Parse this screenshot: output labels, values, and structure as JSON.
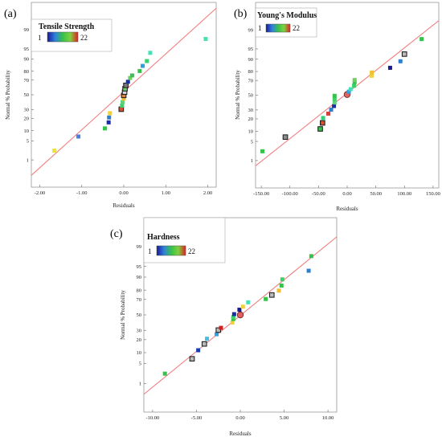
{
  "chart_data": [
    {
      "type": "scatter",
      "panel": "(a)",
      "legend": {
        "title": "Tensile Strength",
        "min": "1",
        "max": "22"
      },
      "xlabel": "Residuals",
      "ylabel": "Normal % Probability",
      "xlim": [
        -2.2,
        2.2
      ],
      "x_ticks": [
        -2.0,
        -1.0,
        0.0,
        1.0,
        2.0
      ],
      "x_tick_labels": [
        "-2.00",
        "-1.00",
        "0.00",
        "1.00",
        "2.00"
      ],
      "y_ticks": [
        1,
        5,
        10,
        20,
        30,
        50,
        70,
        80,
        90,
        95,
        99
      ],
      "y_tick_labels": [
        "1",
        "5",
        "10",
        "20",
        "30",
        "50",
        "70",
        "80",
        "90",
        "95",
        "99"
      ],
      "y_scale": "normal-probability",
      "grid": false,
      "reference_line": {
        "x": [
          -2.2,
          2.2
        ],
        "y": [
          0.2,
          99.9
        ],
        "color": "#f08080"
      },
      "points": [
        {
          "x": -1.65,
          "y": 2.3,
          "color": "#e6e62e",
          "outlined": false
        },
        {
          "x": -1.08,
          "y": 6.8,
          "color": "#4a7fe0",
          "outlined": false
        },
        {
          "x": -0.45,
          "y": 11.5,
          "color": "#36c24a",
          "outlined": false
        },
        {
          "x": -0.36,
          "y": 16.2,
          "color": "#1a2ea8",
          "outlined": false
        },
        {
          "x": -0.35,
          "y": 20.9,
          "color": "#2f7fcf",
          "outlined": false
        },
        {
          "x": -0.33,
          "y": 25.6,
          "color": "#f0d040",
          "outlined": false
        },
        {
          "x": -0.06,
          "y": 30.3,
          "color": "#d95030",
          "outlined": true
        },
        {
          "x": -0.04,
          "y": 35.0,
          "color": "#3fcf6a",
          "outlined": false
        },
        {
          "x": -0.03,
          "y": 39.7,
          "color": "#60d080",
          "outlined": false
        },
        {
          "x": 0.0,
          "y": 44.4,
          "color": "#f0c030",
          "outlined": false
        },
        {
          "x": 0.0,
          "y": 49.1,
          "color": "#e08040",
          "outlined": true
        },
        {
          "x": 0.02,
          "y": 53.8,
          "color": "#d7d7d7",
          "outlined": true
        },
        {
          "x": 0.03,
          "y": 58.5,
          "color": "#6fd06a",
          "outlined": true
        },
        {
          "x": 0.05,
          "y": 63.2,
          "color": "#7a7a7a",
          "outlined": true
        },
        {
          "x": 0.1,
          "y": 67.9,
          "color": "#1a2ea8",
          "outlined": false
        },
        {
          "x": 0.15,
          "y": 72.6,
          "color": "#6fd060",
          "outlined": false
        },
        {
          "x": 0.2,
          "y": 75.5,
          "color": "#4ab85a",
          "outlined": false
        },
        {
          "x": 0.38,
          "y": 80.2,
          "color": "#36c24a",
          "outlined": false
        },
        {
          "x": 0.45,
          "y": 84.9,
          "color": "#2f9fe0",
          "outlined": false
        },
        {
          "x": 0.55,
          "y": 88.6,
          "color": "#3fd070",
          "outlined": false
        },
        {
          "x": 0.63,
          "y": 93.3,
          "color": "#45e0b5",
          "outlined": false
        },
        {
          "x": 1.95,
          "y": 97.7,
          "color": "#45e0b5",
          "outlined": false
        }
      ]
    },
    {
      "type": "scatter",
      "panel": "(b)",
      "legend": {
        "title": "Young's Modulus",
        "min": "1",
        "max": "22"
      },
      "xlabel": "Residuals",
      "ylabel": "Normal % Probability",
      "xlim": [
        -160,
        160
      ],
      "x_ticks": [
        -150,
        -100,
        -50,
        0,
        50,
        100,
        150
      ],
      "x_tick_labels": [
        "-150.00",
        "-100.00",
        "-50.00",
        "0.00",
        "50.00",
        "100.00",
        "150.00"
      ],
      "y_ticks": [
        1,
        5,
        10,
        20,
        30,
        50,
        70,
        80,
        90,
        95,
        99
      ],
      "y_tick_labels": [
        "1",
        "5",
        "10",
        "20",
        "30",
        "50",
        "70",
        "80",
        "90",
        "95",
        "99"
      ],
      "y_scale": "normal-probability",
      "grid": false,
      "reference_line": {
        "x": [
          -160,
          160
        ],
        "y": [
          0.6,
          99.6
        ],
        "color": "#f08080"
      },
      "points": [
        {
          "x": -148,
          "y": 2.3,
          "color": "#36c24a",
          "outlined": false
        },
        {
          "x": -108,
          "y": 6.8,
          "color": "#8f8f8f",
          "outlined": true
        },
        {
          "x": -47,
          "y": 11.5,
          "color": "#36c24a",
          "outlined": true
        },
        {
          "x": -43,
          "y": 16.2,
          "color": "#d95030",
          "outlined": true
        },
        {
          "x": -42,
          "y": 20.9,
          "color": "#2fcf7a",
          "outlined": false
        },
        {
          "x": -33,
          "y": 25.6,
          "color": "#d04040",
          "outlined": false
        },
        {
          "x": -28,
          "y": 30.3,
          "color": "#2f7fcf",
          "outlined": false
        },
        {
          "x": -23,
          "y": 35.0,
          "color": "#1a2ea8",
          "outlined": false
        },
        {
          "x": -22,
          "y": 39.7,
          "color": "#60d080",
          "outlined": false
        },
        {
          "x": -22,
          "y": 44.4,
          "color": "#3fcf6a",
          "outlined": false
        },
        {
          "x": -22,
          "y": 49.1,
          "color": "#36c24a",
          "outlined": false
        },
        {
          "x": 0,
          "y": 51.0,
          "color": "#e06060",
          "outlined": true,
          "circle": true
        },
        {
          "x": 3,
          "y": 55.0,
          "color": "#2fa0e0",
          "outlined": false
        },
        {
          "x": 6,
          "y": 58.5,
          "color": "#45e0b5",
          "outlined": false
        },
        {
          "x": 12,
          "y": 63.2,
          "color": "#3fcf6a",
          "outlined": false
        },
        {
          "x": 13,
          "y": 67.9,
          "color": "#36c24a",
          "outlined": false
        },
        {
          "x": 13,
          "y": 70.5,
          "color": "#6fd060",
          "outlined": false
        },
        {
          "x": 43,
          "y": 75.5,
          "color": "#f0d040",
          "outlined": false
        },
        {
          "x": 43,
          "y": 79.0,
          "color": "#f0c030",
          "outlined": false
        },
        {
          "x": 75,
          "y": 83.5,
          "color": "#1a1a90",
          "outlined": false
        },
        {
          "x": 93,
          "y": 88.6,
          "color": "#2f7fcf",
          "outlined": false
        },
        {
          "x": 100,
          "y": 92.8,
          "color": "#bbbbbb",
          "outlined": true
        },
        {
          "x": 130,
          "y": 97.7,
          "color": "#36c24a",
          "outlined": false
        }
      ]
    },
    {
      "type": "scatter",
      "panel": "(c)",
      "legend": {
        "title": "Hardness",
        "min": "1",
        "max": "22"
      },
      "xlabel": "Residuals",
      "ylabel": "Normal % Probability",
      "xlim": [
        -11,
        11
      ],
      "x_ticks": [
        -10,
        -5,
        0,
        5,
        10
      ],
      "x_tick_labels": [
        "-10.00",
        "-5.00",
        "0.00",
        "5.00",
        "10.00"
      ],
      "y_ticks": [
        1,
        5,
        10,
        20,
        30,
        50,
        70,
        80,
        90,
        95,
        99
      ],
      "y_tick_labels": [
        "1",
        "5",
        "10",
        "20",
        "30",
        "50",
        "70",
        "80",
        "90",
        "95",
        "99"
      ],
      "y_scale": "normal-probability",
      "grid": false,
      "reference_line": {
        "x": [
          -11,
          11
        ],
        "y": [
          0.35,
          99.6
        ],
        "color": "#f08080"
      },
      "points": [
        {
          "x": -8.6,
          "y": 2.3,
          "color": "#36c24a",
          "outlined": false
        },
        {
          "x": -5.5,
          "y": 6.8,
          "color": "#bbbbbb",
          "outlined": true
        },
        {
          "x": -4.8,
          "y": 11.5,
          "color": "#1a3ab0",
          "outlined": false
        },
        {
          "x": -4.1,
          "y": 16.2,
          "color": "#bbbbbb",
          "outlined": true
        },
        {
          "x": -3.8,
          "y": 20.9,
          "color": "#45c0e0",
          "outlined": false
        },
        {
          "x": -2.7,
          "y": 25.6,
          "color": "#2f9fe0",
          "outlined": false
        },
        {
          "x": -2.5,
          "y": 30.3,
          "color": "#bbbbbb",
          "outlined": true
        },
        {
          "x": -2.2,
          "y": 33.0,
          "color": "#d02020",
          "outlined": false
        },
        {
          "x": -0.9,
          "y": 39.7,
          "color": "#f0d040",
          "outlined": false
        },
        {
          "x": -0.8,
          "y": 44.4,
          "color": "#36c24a",
          "outlined": false
        },
        {
          "x": -0.8,
          "y": 47.0,
          "color": "#3fd070",
          "outlined": false
        },
        {
          "x": -0.7,
          "y": 51.0,
          "color": "#1a2ea8",
          "outlined": false
        },
        {
          "x": 0.0,
          "y": 50.0,
          "color": "#e06060",
          "outlined": true,
          "circle": true
        },
        {
          "x": -0.1,
          "y": 57.0,
          "color": "#1a1a90",
          "outlined": false
        },
        {
          "x": 0.3,
          "y": 61.0,
          "color": "#f0d040",
          "outlined": false
        },
        {
          "x": 0.9,
          "y": 66.5,
          "color": "#45e0b5",
          "outlined": false
        },
        {
          "x": 2.9,
          "y": 70.5,
          "color": "#36c24a",
          "outlined": false
        },
        {
          "x": 3.6,
          "y": 75.0,
          "color": "#bbbbbb",
          "outlined": true
        },
        {
          "x": 4.4,
          "y": 79.5,
          "color": "#f0c030",
          "outlined": false
        },
        {
          "x": 4.7,
          "y": 84.0,
          "color": "#36c24a",
          "outlined": false
        },
        {
          "x": 4.8,
          "y": 88.6,
          "color": "#3fcf6a",
          "outlined": false
        },
        {
          "x": 7.8,
          "y": 93.3,
          "color": "#2f7fcf",
          "outlined": false
        },
        {
          "x": 8.1,
          "y": 97.7,
          "color": "#36c24a",
          "outlined": false
        }
      ]
    }
  ]
}
